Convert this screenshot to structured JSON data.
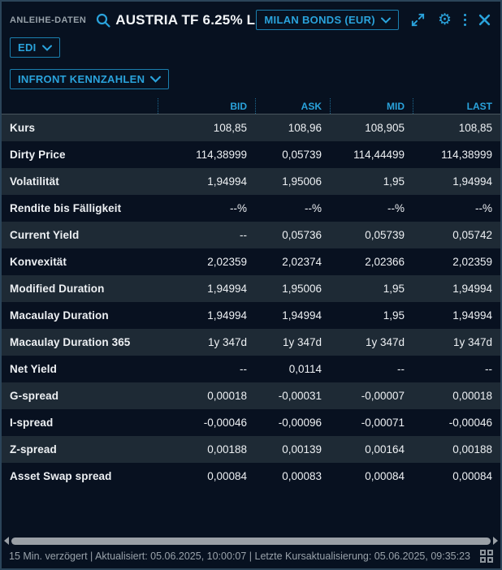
{
  "header": {
    "title": "ANLEIHE-DATEN",
    "search_value": "AUSTRIA TF 6.25% L",
    "feed_selector": "MILAN BONDS (EUR)",
    "icons": {
      "search": "magnifier-icon",
      "expand": "expand-arrows-icon",
      "settings": "gear-icon",
      "menu": "kebab-menu-icon",
      "close": "x-close-icon"
    }
  },
  "toolbar": {
    "edi_label": "EDI",
    "kennzahlen_label": "INFRONT KENNZAHLEN"
  },
  "table": {
    "columns": [
      "BID",
      "ASK",
      "MID",
      "LAST"
    ],
    "rows": [
      {
        "label": "Kurs",
        "bid": "108,85",
        "ask": "108,96",
        "mid": "108,905",
        "last": "108,85"
      },
      {
        "label": "Dirty Price",
        "bid": "114,38999",
        "ask": "0,05739",
        "mid": "114,44499",
        "last": "114,38999"
      },
      {
        "label": "Volatilität",
        "bid": "1,94994",
        "ask": "1,95006",
        "mid": "1,95",
        "last": "1,94994"
      },
      {
        "label": "Rendite bis Fälligkeit",
        "bid": "--%",
        "ask": "--%",
        "mid": "--%",
        "last": "--%"
      },
      {
        "label": "Current Yield",
        "bid": "--",
        "ask": "0,05736",
        "mid": "0,05739",
        "last": "0,05742"
      },
      {
        "label": "Konvexität",
        "bid": "2,02359",
        "ask": "2,02374",
        "mid": "2,02366",
        "last": "2,02359"
      },
      {
        "label": "Modified Duration",
        "bid": "1,94994",
        "ask": "1,95006",
        "mid": "1,95",
        "last": "1,94994"
      },
      {
        "label": "Macaulay Duration",
        "bid": "1,94994",
        "ask": "1,94994",
        "mid": "1,95",
        "last": "1,94994"
      },
      {
        "label": "Macaulay Duration 365",
        "bid": "1y 347d",
        "ask": "1y 347d",
        "mid": "1y 347d",
        "last": "1y 347d"
      },
      {
        "label": "Net Yield",
        "bid": "--",
        "ask": "0,0114",
        "mid": "--",
        "last": "--"
      },
      {
        "label": "G-spread",
        "bid": "0,00018",
        "ask": "-0,00031",
        "mid": "-0,00007",
        "last": "0,00018"
      },
      {
        "label": "I-spread",
        "bid": "-0,00046",
        "ask": "-0,00096",
        "mid": "-0,00071",
        "last": "-0,00046"
      },
      {
        "label": "Z-spread",
        "bid": "0,00188",
        "ask": "0,00139",
        "mid": "0,00164",
        "last": "0,00188"
      },
      {
        "label": "Asset Swap spread",
        "bid": "0,00084",
        "ask": "0,00083",
        "mid": "0,00084",
        "last": "0,00084"
      }
    ]
  },
  "statusbar": {
    "text": "15 Min. verzögert | Aktualisiert: 05.06.2025, 10:00:07 | Letzte Kursaktualisierung: 05.06.2025, 09:35:23"
  },
  "colors": {
    "accent": "#2aa3dc",
    "accent_border": "#1b7fae",
    "row_light": "#1e2a35",
    "row_dark": "#081120",
    "window_bg": "#071120",
    "muted_text": "#99a2aa",
    "scrollbar": "#9aa0a6"
  }
}
